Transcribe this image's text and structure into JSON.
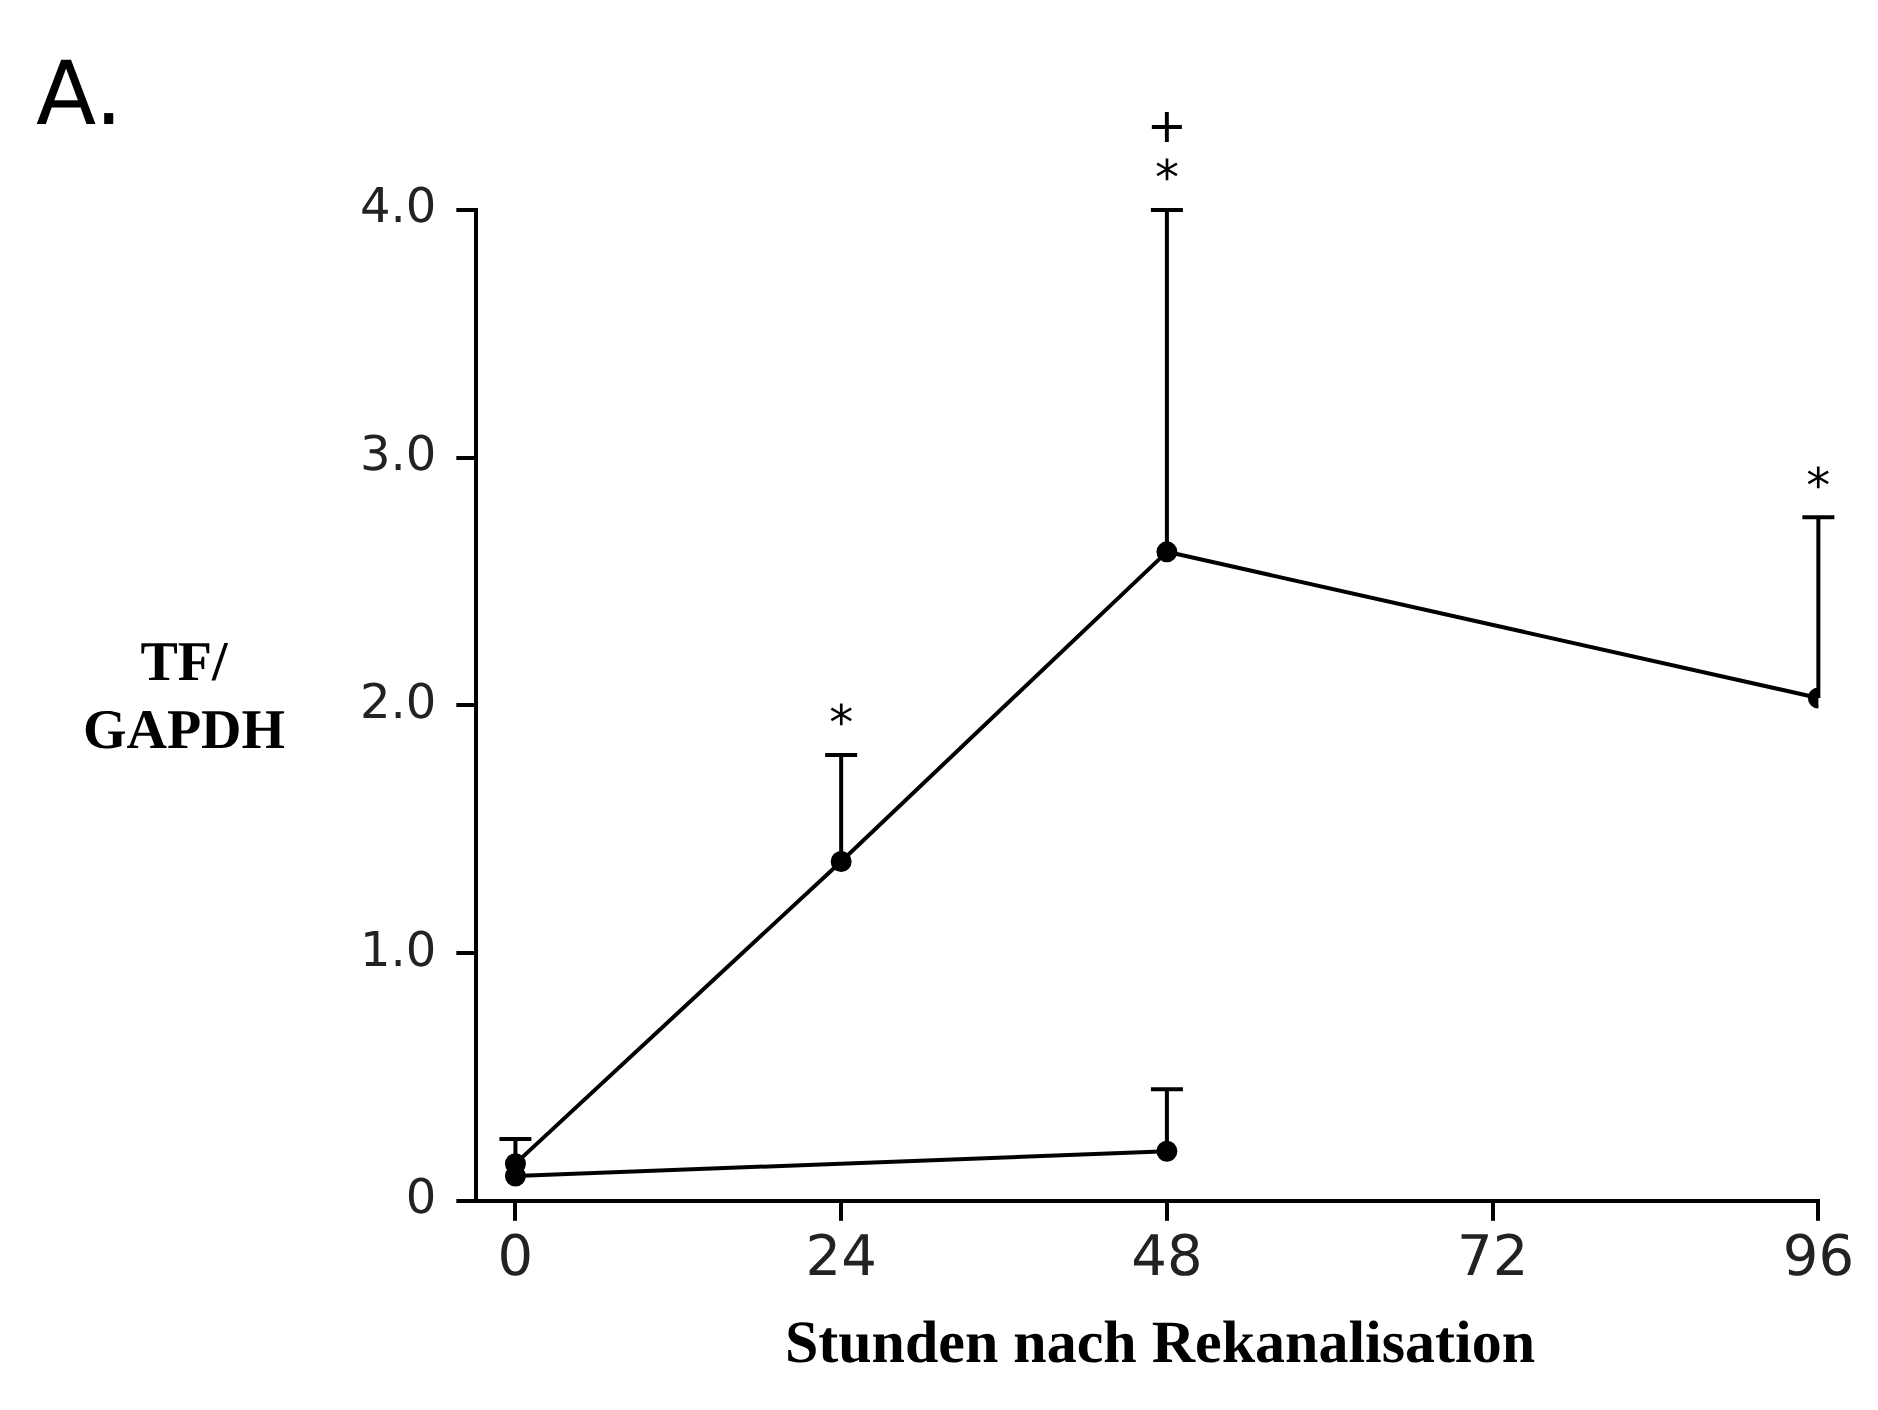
{
  "chart_data": {
    "type": "line",
    "title": "A.",
    "xlabel": "Stunden nach Rekanalisation",
    "ylabel": "TF/\nGAPDH",
    "categories": [
      "0",
      "24",
      "48",
      "72",
      "96"
    ],
    "series": [
      {
        "color": "#000000",
        "values": [
          0.15,
          1.37,
          2.62,
          null,
          2.03
        ],
        "errors": [
          [
            0.15,
            0.25
          ],
          [
            1.37,
            1.8
          ],
          [
            2.62,
            4.0
          ],
          null,
          [
            2.03,
            2.76
          ]
        ]
      },
      {
        "color": "#000000",
        "values": [
          0.1,
          null,
          0.2,
          null,
          null
        ],
        "errors": [
          null,
          null,
          [
            0.2,
            0.45
          ],
          null,
          null
        ]
      }
    ],
    "ylim": [
      0,
      4.0
    ],
    "yticks": [
      0,
      {
        "value": 1,
        "label": "1.0"
      },
      {
        "value": 2,
        "label": "2.0"
      },
      {
        "value": 3,
        "label": "3.0"
      },
      {
        "value": 4,
        "label": "4.0"
      }
    ],
    "grid": false,
    "legend": false,
    "marker": "circle",
    "line_style": "solid",
    "annotations": [
      {
        "text": "*",
        "x": "24",
        "y": 1.8
      },
      {
        "text": "*",
        "x": "48",
        "y": 4.0
      },
      {
        "text": "+",
        "x": "48",
        "y": 4.0
      },
      {
        "text": "*",
        "x": "96",
        "y": 2.76
      }
    ]
  }
}
